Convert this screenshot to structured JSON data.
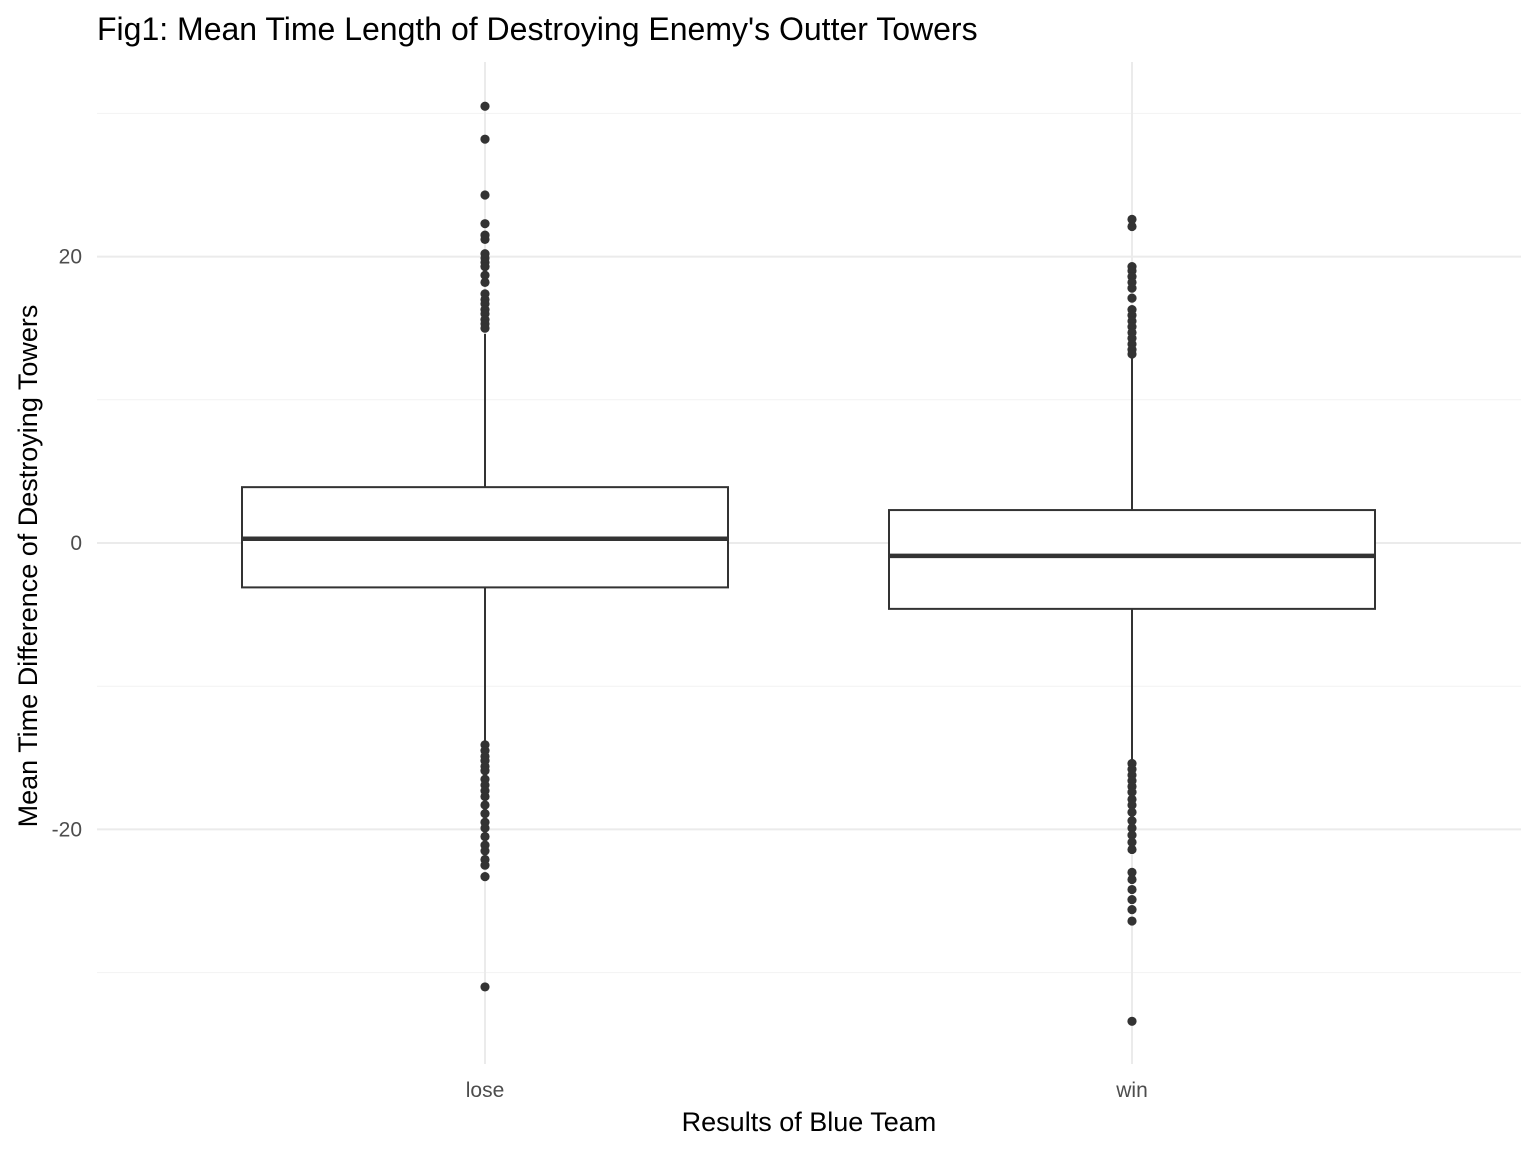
{
  "chart_data": {
    "type": "boxplot",
    "title": "Fig1: Mean Time Length of Destroying Enemy's Outter Towers",
    "xlabel": "Results of Blue Team",
    "ylabel": "Mean Time Difference of Destroying Towers",
    "categories": [
      "lose",
      "win"
    ],
    "y_ticks": [
      -20,
      0,
      20
    ],
    "ylim": [
      -36.5,
      33.5
    ],
    "grid": true,
    "legend": "none",
    "colors": {
      "box_stroke": "#333333",
      "grid": "#ebebeb",
      "tick_label": "#4d4d4d"
    },
    "boxes": [
      {
        "category": "lose",
        "whisker_low": -13.8,
        "q1": -3.1,
        "median": 0.3,
        "q3": 3.9,
        "whisker_high": 14.6,
        "outliers": [
          30.5,
          28.2,
          24.3,
          22.3,
          21.5,
          21.2,
          20.2,
          19.9,
          19.6,
          19.3,
          18.7,
          18.2,
          17.4,
          17.0,
          16.7,
          16.3,
          16.0,
          15.6,
          15.3,
          15.0,
          -14.1,
          -14.5,
          -14.9,
          -15.2,
          -15.6,
          -15.9,
          -16.5,
          -16.9,
          -17.3,
          -17.7,
          -18.3,
          -18.9,
          -19.5,
          -19.9,
          -20.5,
          -21.1,
          -21.5,
          -22.1,
          -22.5,
          -23.3,
          -31.0
        ]
      },
      {
        "category": "win",
        "whisker_low": -15.2,
        "q1": -4.6,
        "median": -0.9,
        "q3": 2.3,
        "whisker_high": 13.0,
        "outliers": [
          22.6,
          22.1,
          19.3,
          19.0,
          18.6,
          18.2,
          17.8,
          17.1,
          16.3,
          15.9,
          15.5,
          15.1,
          14.7,
          14.3,
          13.9,
          13.5,
          13.2,
          -15.4,
          -15.8,
          -16.2,
          -16.6,
          -17.0,
          -17.4,
          -17.9,
          -18.3,
          -18.8,
          -19.4,
          -19.9,
          -20.4,
          -20.9,
          -21.4,
          -23.0,
          -23.5,
          -24.2,
          -24.9,
          -25.6,
          -26.4,
          -33.4
        ]
      }
    ]
  }
}
